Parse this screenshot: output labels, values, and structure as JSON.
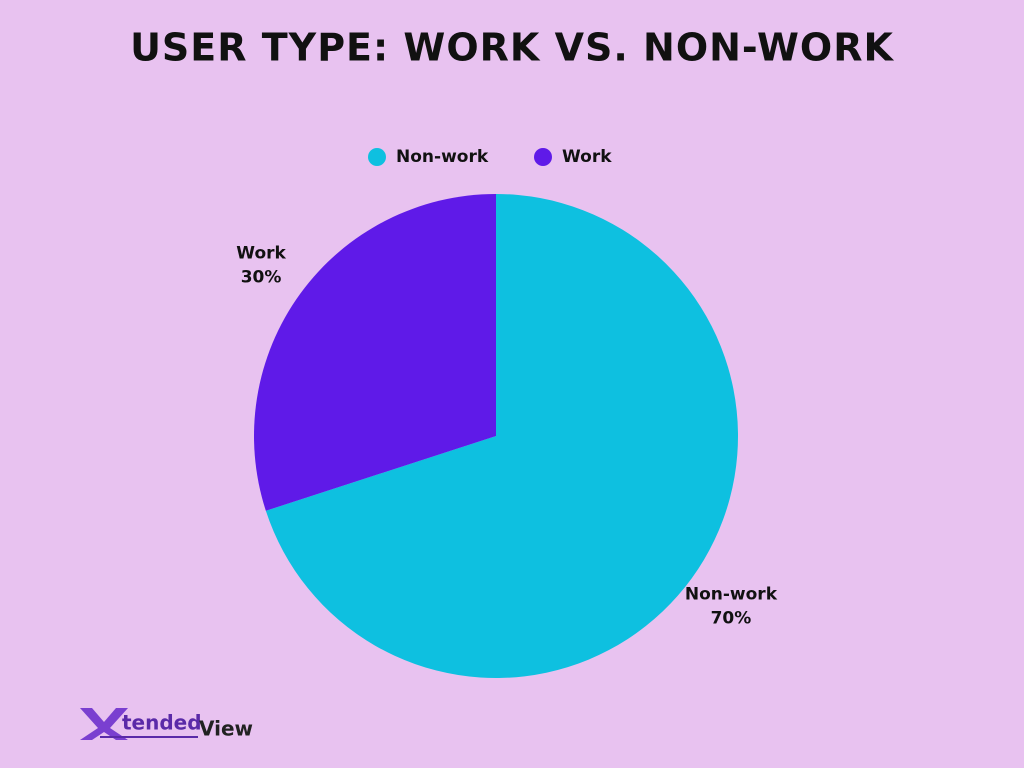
{
  "chart_data": {
    "type": "pie",
    "title": "USER TYPE: WORK VS. NON-WORK",
    "categories": [
      "Non-work",
      "Work"
    ],
    "values": [
      70,
      30
    ],
    "value_labels": [
      "70%",
      "30%"
    ],
    "colors": [
      "#0ec0e0",
      "#5f1ae8"
    ],
    "legend": "top"
  },
  "logo": {
    "mark": "X",
    "words": [
      "tended",
      "View"
    ]
  }
}
